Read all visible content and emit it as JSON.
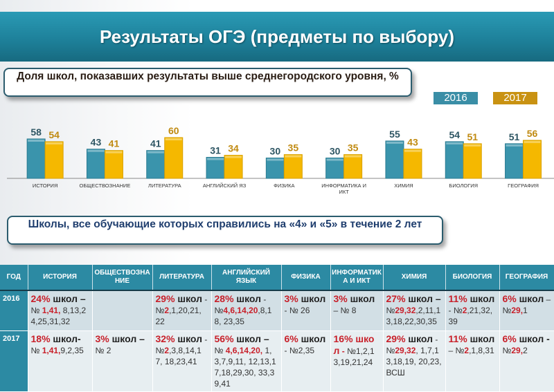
{
  "title": "Результаты ОГЭ (предметы по выбору)",
  "callout1": "Доля школ, показавших результаты выше среднегородского уровня, %",
  "callout2": "Школы, все обучающие которых справились на «4» и «5» в течение 2 лет",
  "chart_data": {
    "type": "bar",
    "title": "Доля школ, показавших результаты выше среднегородского уровня, %",
    "categories": [
      "ИСТОРИЯ",
      "ОБЩЕСТВОЗНАНИЕ",
      "ЛИТЕРАТУРА",
      "АНГЛИЙСКИЙ ЯЗ",
      "ФИЗИКА",
      "ИНФОРМАТИКА И ИКТ",
      "ХИМИЯ",
      "БИОЛОГИЯ",
      "ГЕОГРАФИЯ"
    ],
    "series": [
      {
        "name": "2016",
        "color": "#3a94ac",
        "values": [
          58,
          43,
          41,
          31,
          30,
          30,
          55,
          54,
          51
        ]
      },
      {
        "name": "2017",
        "color": "#f5b800",
        "values": [
          54,
          41,
          60,
          34,
          35,
          35,
          43,
          51,
          56
        ]
      }
    ],
    "ylim": [
      0,
      60
    ],
    "legend": "top-right",
    "grid": false
  },
  "table": {
    "headers": [
      "ГОД",
      "ИСТОРИЯ",
      "ОБЩЕСТВОЗНАНИЕ",
      "ЛИТЕРАТУРА",
      "АНГЛИЙСКИЙ ЯЗЫК",
      "ФИЗИКА",
      "ИНФОРМАТИКА И ИКТ",
      "ХИМИЯ",
      "БИОЛОГИЯ",
      "ГЕОГРАФИЯ"
    ],
    "rows": [
      {
        "year": "2016",
        "cells": [
          [
            {
              "t": "24%",
              "r": 1,
              "b": 1
            },
            {
              "t": " школ –",
              "b": 1
            },
            {
              "t": " № "
            },
            {
              "t": "1,41,",
              "r": 1
            },
            {
              "t": " 8,13,24,25,31,32"
            }
          ],
          [],
          [
            {
              "t": "29%",
              "r": 1,
              "b": 1
            },
            {
              "t": " школ",
              "b": 1
            },
            {
              "t": " - №"
            },
            {
              "t": "2",
              "r": 1
            },
            {
              "t": ",1,20,21, 22"
            }
          ],
          [
            {
              "t": "28%",
              "r": 1,
              "b": 1
            },
            {
              "t": " школ",
              "b": 1
            },
            {
              "t": " - №"
            },
            {
              "t": "4,6,14,20",
              "r": 1
            },
            {
              "t": ",8,18, 23,35"
            }
          ],
          [
            {
              "t": "3%",
              "r": 1,
              "b": 1
            },
            {
              "t": " школ",
              "b": 1
            },
            {
              "t": " - № 26"
            }
          ],
          [
            {
              "t": "3%",
              "r": 1,
              "b": 1
            },
            {
              "t": " школ",
              "b": 1
            },
            {
              "t": " – № 8"
            }
          ],
          [
            {
              "t": "27%",
              "r": 1,
              "b": 1
            },
            {
              "t": " школ –",
              "b": 1
            },
            {
              "t": " №"
            },
            {
              "t": "29,32",
              "r": 1
            },
            {
              "t": ",2,11,13,18,22,30,35"
            }
          ],
          [
            {
              "t": "11%",
              "r": 1,
              "b": 1
            },
            {
              "t": " школ",
              "b": 1
            },
            {
              "t": " - №"
            },
            {
              "t": "2",
              "r": 1
            },
            {
              "t": ",21,32,39"
            }
          ],
          [
            {
              "t": "6%",
              "r": 1,
              "b": 1
            },
            {
              "t": " школ",
              "b": 1
            },
            {
              "t": " – №"
            },
            {
              "t": "29,",
              "r": 1
            },
            {
              "t": "1"
            }
          ]
        ]
      },
      {
        "year": "2017",
        "cells": [
          [
            {
              "t": "18%",
              "r": 1,
              "b": 1
            },
            {
              "t": " школ-",
              "b": 1
            },
            {
              "t": " № "
            },
            {
              "t": "1,41,",
              "r": 1
            },
            {
              "t": "9,2,35"
            }
          ],
          [
            {
              "t": "3%",
              "r": 1,
              "b": 1
            },
            {
              "t": " школ –",
              "b": 1
            },
            {
              "t": " № 2"
            }
          ],
          [
            {
              "t": "32%",
              "r": 1,
              "b": 1
            },
            {
              "t": " школ",
              "b": 1
            },
            {
              "t": " - №"
            },
            {
              "t": "2",
              "r": 1
            },
            {
              "t": ",3,8,14,17, 18,23,41"
            }
          ],
          [
            {
              "t": "56%",
              "r": 1,
              "b": 1
            },
            {
              "t": " школ –",
              "b": 1
            },
            {
              "t": " № "
            },
            {
              "t": "4,6,14,20,",
              "r": 1
            },
            {
              "t": " 1,3,7,9,11, 12,13,17,18,29,30, 33,39,41"
            }
          ],
          [
            {
              "t": "6%",
              "r": 1,
              "b": 1
            },
            {
              "t": " школ",
              "b": 1
            },
            {
              "t": " - №2,35"
            }
          ],
          [
            {
              "t": "16% школ",
              "r": 1,
              "b": 1
            },
            {
              "t": " -",
              "r": 1
            },
            {
              "t": " №1,2,13,19,21,24"
            }
          ],
          [
            {
              "t": "29%",
              "r": 1,
              "b": 1
            },
            {
              "t": " школ",
              "b": 1
            },
            {
              "t": " - №"
            },
            {
              "t": "29,32",
              "r": 1
            },
            {
              "t": ", 1,7,13,18,19, 20,23,ВСШ"
            }
          ],
          [
            {
              "t": "11%",
              "r": 1,
              "b": 1
            },
            {
              "t": " школ",
              "b": 1
            },
            {
              "t": " – №"
            },
            {
              "t": "2",
              "r": 1
            },
            {
              "t": ",1,8,31"
            }
          ],
          [
            {
              "t": "6%",
              "r": 1,
              "b": 1
            },
            {
              "t": " школ -",
              "b": 1
            },
            {
              "t": " №"
            },
            {
              "t": "29,",
              "r": 1
            },
            {
              "t": "2"
            }
          ]
        ]
      }
    ]
  }
}
